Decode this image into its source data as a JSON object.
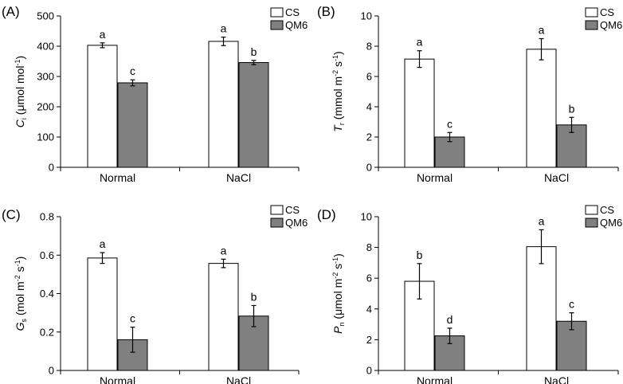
{
  "legend": {
    "series": [
      "CS",
      "QM6"
    ]
  },
  "chart_data": [
    {
      "type": "bar",
      "panel_label": "(A)",
      "ylabel": {
        "symbol": "C",
        "subscript": "i",
        "unit": " (μmol mol",
        "exp": "-1",
        "close": ")"
      },
      "categories": [
        "Normal",
        "NaCl"
      ],
      "ylim": [
        0,
        500
      ],
      "yticks": [
        0,
        100,
        200,
        300,
        400,
        500
      ],
      "series": [
        {
          "name": "CS",
          "values": [
            403,
            416
          ],
          "errors": [
            8,
            14
          ],
          "letters": [
            "a",
            "a"
          ]
        },
        {
          "name": "QM6",
          "values": [
            279,
            346
          ],
          "errors": [
            10,
            7
          ],
          "letters": [
            "c",
            "b"
          ]
        }
      ]
    },
    {
      "type": "bar",
      "panel_label": "(B)",
      "ylabel": {
        "symbol": "T",
        "subscript": "r",
        "unit": " (mmol m",
        "exp": "-2",
        "unit2": " s",
        "exp2": "-1",
        "close": ")"
      },
      "categories": [
        "Normal",
        "NaCl"
      ],
      "ylim": [
        0,
        10
      ],
      "yticks": [
        0,
        2,
        4,
        6,
        8,
        10
      ],
      "series": [
        {
          "name": "CS",
          "values": [
            7.15,
            7.8
          ],
          "errors": [
            0.55,
            0.7
          ],
          "letters": [
            "a",
            "a"
          ]
        },
        {
          "name": "QM6",
          "values": [
            2.0,
            2.8
          ],
          "errors": [
            0.3,
            0.5
          ],
          "letters": [
            "c",
            "b"
          ]
        }
      ]
    },
    {
      "type": "bar",
      "panel_label": "(C)",
      "ylabel": {
        "symbol": "G",
        "subscript": "s",
        "unit": " (mol m",
        "exp": "-2",
        "unit2": " s",
        "exp2": "-1",
        "close": ")"
      },
      "categories": [
        "Normal",
        "NaCl"
      ],
      "ylim": [
        0,
        0.8
      ],
      "yticks": [
        "0",
        "0.2",
        "0.4",
        "0.6",
        "0.8"
      ],
      "series": [
        {
          "name": "CS",
          "values": [
            0.585,
            0.557
          ],
          "errors": [
            0.028,
            0.022
          ],
          "letters": [
            "a",
            "a"
          ]
        },
        {
          "name": "QM6",
          "values": [
            0.16,
            0.283
          ],
          "errors": [
            0.065,
            0.055
          ],
          "letters": [
            "c",
            "b"
          ]
        }
      ]
    },
    {
      "type": "bar",
      "panel_label": "(D)",
      "ylabel": {
        "symbol": "P",
        "subscript": "n",
        "unit": " (μmol m",
        "exp": "-2",
        "unit2": " s",
        "exp2": "-1",
        "close": ")"
      },
      "categories": [
        "Normal",
        "NaCl"
      ],
      "ylim": [
        0,
        10
      ],
      "yticks": [
        0,
        2,
        4,
        6,
        8,
        10
      ],
      "series": [
        {
          "name": "CS",
          "values": [
            5.8,
            8.05
          ],
          "errors": [
            1.15,
            1.1
          ],
          "letters": [
            "b",
            "a"
          ]
        },
        {
          "name": "QM6",
          "values": [
            2.25,
            3.2
          ],
          "errors": [
            0.5,
            0.55
          ],
          "letters": [
            "d",
            "c"
          ]
        }
      ]
    }
  ]
}
